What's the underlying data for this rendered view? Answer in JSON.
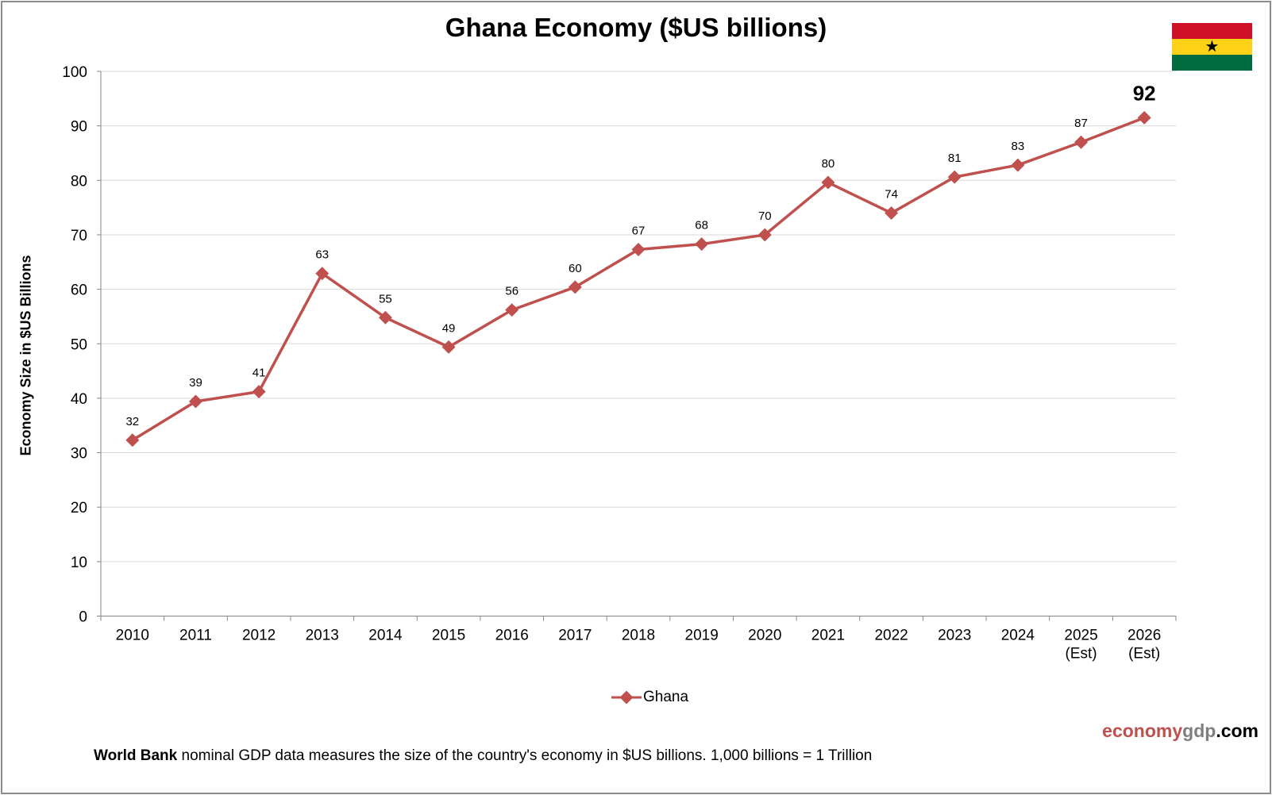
{
  "colors": {
    "series": "#c0504d",
    "grid": "#d9d9d9",
    "axis": "#868686",
    "brand_red": "#c0504d",
    "brand_gray": "#7f7f7f"
  },
  "brand": {
    "part1": "economy",
    "part2": "gdp",
    "part3": ".com"
  },
  "footnote": {
    "bold": "World Bank",
    "text": " nominal GDP data  measures the size of the country's economy in $US billions.  1,000 billions = 1 Trillion"
  },
  "flag": {
    "icon": "ghana-flag-icon",
    "colors": [
      "#ce1126",
      "#fcd116",
      "#006b3f"
    ]
  },
  "chart_data": {
    "type": "line",
    "title": "Ghana Economy ($US billions)",
    "ylabel": "Economy Size in $US Billions",
    "xlabel": "",
    "ylim": [
      0,
      100
    ],
    "yticks": [
      0,
      10,
      20,
      30,
      40,
      50,
      60,
      70,
      80,
      90,
      100
    ],
    "grid": true,
    "legend_position": "bottom",
    "categories": [
      [
        "2010"
      ],
      [
        "2011"
      ],
      [
        "2012"
      ],
      [
        "2013"
      ],
      [
        "2014"
      ],
      [
        "2015"
      ],
      [
        "2016"
      ],
      [
        "2017"
      ],
      [
        "2018"
      ],
      [
        "2019"
      ],
      [
        "2020"
      ],
      [
        "2021"
      ],
      [
        "2022"
      ],
      [
        "2023"
      ],
      [
        "2024"
      ],
      [
        "2025",
        "(Est)"
      ],
      [
        "2026",
        "(Est)"
      ]
    ],
    "series": [
      {
        "name": "Ghana",
        "values": [
          32.3,
          39.4,
          41.2,
          62.9,
          54.8,
          49.4,
          56.2,
          60.4,
          67.3,
          68.3,
          70.0,
          79.6,
          74.0,
          80.6,
          82.8,
          87.0,
          91.5
        ],
        "labels": [
          "32",
          "39",
          "41",
          "63",
          "55",
          "49",
          "56",
          "60",
          "67",
          "68",
          "70",
          "80",
          "74",
          "81",
          "83",
          "87",
          "92"
        ]
      }
    ]
  }
}
